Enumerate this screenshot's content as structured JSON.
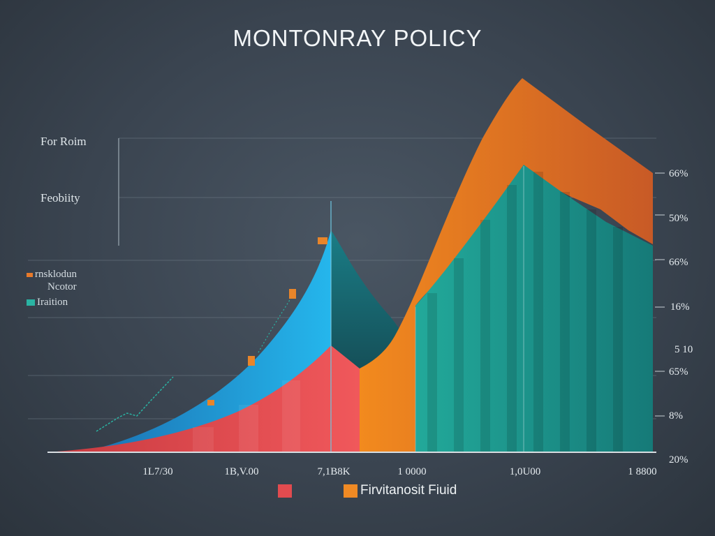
{
  "chart_data": {
    "type": "area",
    "title": "MONTONRAY POLICY",
    "left_labels": [
      "For Roim",
      "Feobiity"
    ],
    "legend_mini": [
      {
        "label": "rnsklodun",
        "color": "#e87a2a"
      },
      {
        "label": "Ncotor",
        "color": ""
      },
      {
        "label": "Iraition",
        "color": "#2ab3a3"
      }
    ],
    "x_ticks": [
      "1L7/30",
      "1B,V.00",
      "7,1B8K",
      "1 0000",
      "1,0U00",
      "1 8800"
    ],
    "y_ticks": [
      "66%",
      "50%",
      "66%",
      "16%",
      "5 10",
      "65%",
      "8%",
      "20%"
    ],
    "legend": [
      {
        "label": "",
        "color": "#e24b4f"
      },
      {
        "label": "Firvitanosit Fiuid",
        "color": "#f08a24"
      }
    ],
    "colors": {
      "red": "#e24b4f",
      "blue": "#1fa7e0",
      "orange": "#f08a24",
      "teal": "#1f9e8f",
      "dark_teal": "#1a5560"
    },
    "series": [
      {
        "name": "",
        "color": "#e24b4f",
        "points": [
          [
            0,
            0
          ],
          [
            0.3,
            4
          ],
          [
            0.6,
            12
          ],
          [
            0.8,
            22
          ],
          [
            0.96,
            34
          ],
          [
            1.05,
            38
          ],
          [
            1.2,
            32
          ]
        ]
      },
      {
        "name": "",
        "color": "#1fa7e0",
        "points": [
          [
            0,
            0
          ],
          [
            0.3,
            3
          ],
          [
            0.6,
            14
          ],
          [
            0.8,
            34
          ],
          [
            0.96,
            74
          ],
          [
            1.1,
            56
          ],
          [
            1.2,
            30
          ]
        ]
      },
      {
        "name": "",
        "color": "#f08a24",
        "points": [
          [
            1.05,
            30
          ],
          [
            1.3,
            42
          ],
          [
            1.6,
            92
          ],
          [
            1.75,
            126
          ],
          [
            2.0,
            110
          ],
          [
            2.3,
            88
          ]
        ]
      },
      {
        "name": "",
        "color": "#1f9e8f",
        "points": [
          [
            1.5,
            48
          ],
          [
            1.75,
            96
          ],
          [
            2.0,
            80
          ],
          [
            2.3,
            68
          ]
        ]
      }
    ]
  }
}
